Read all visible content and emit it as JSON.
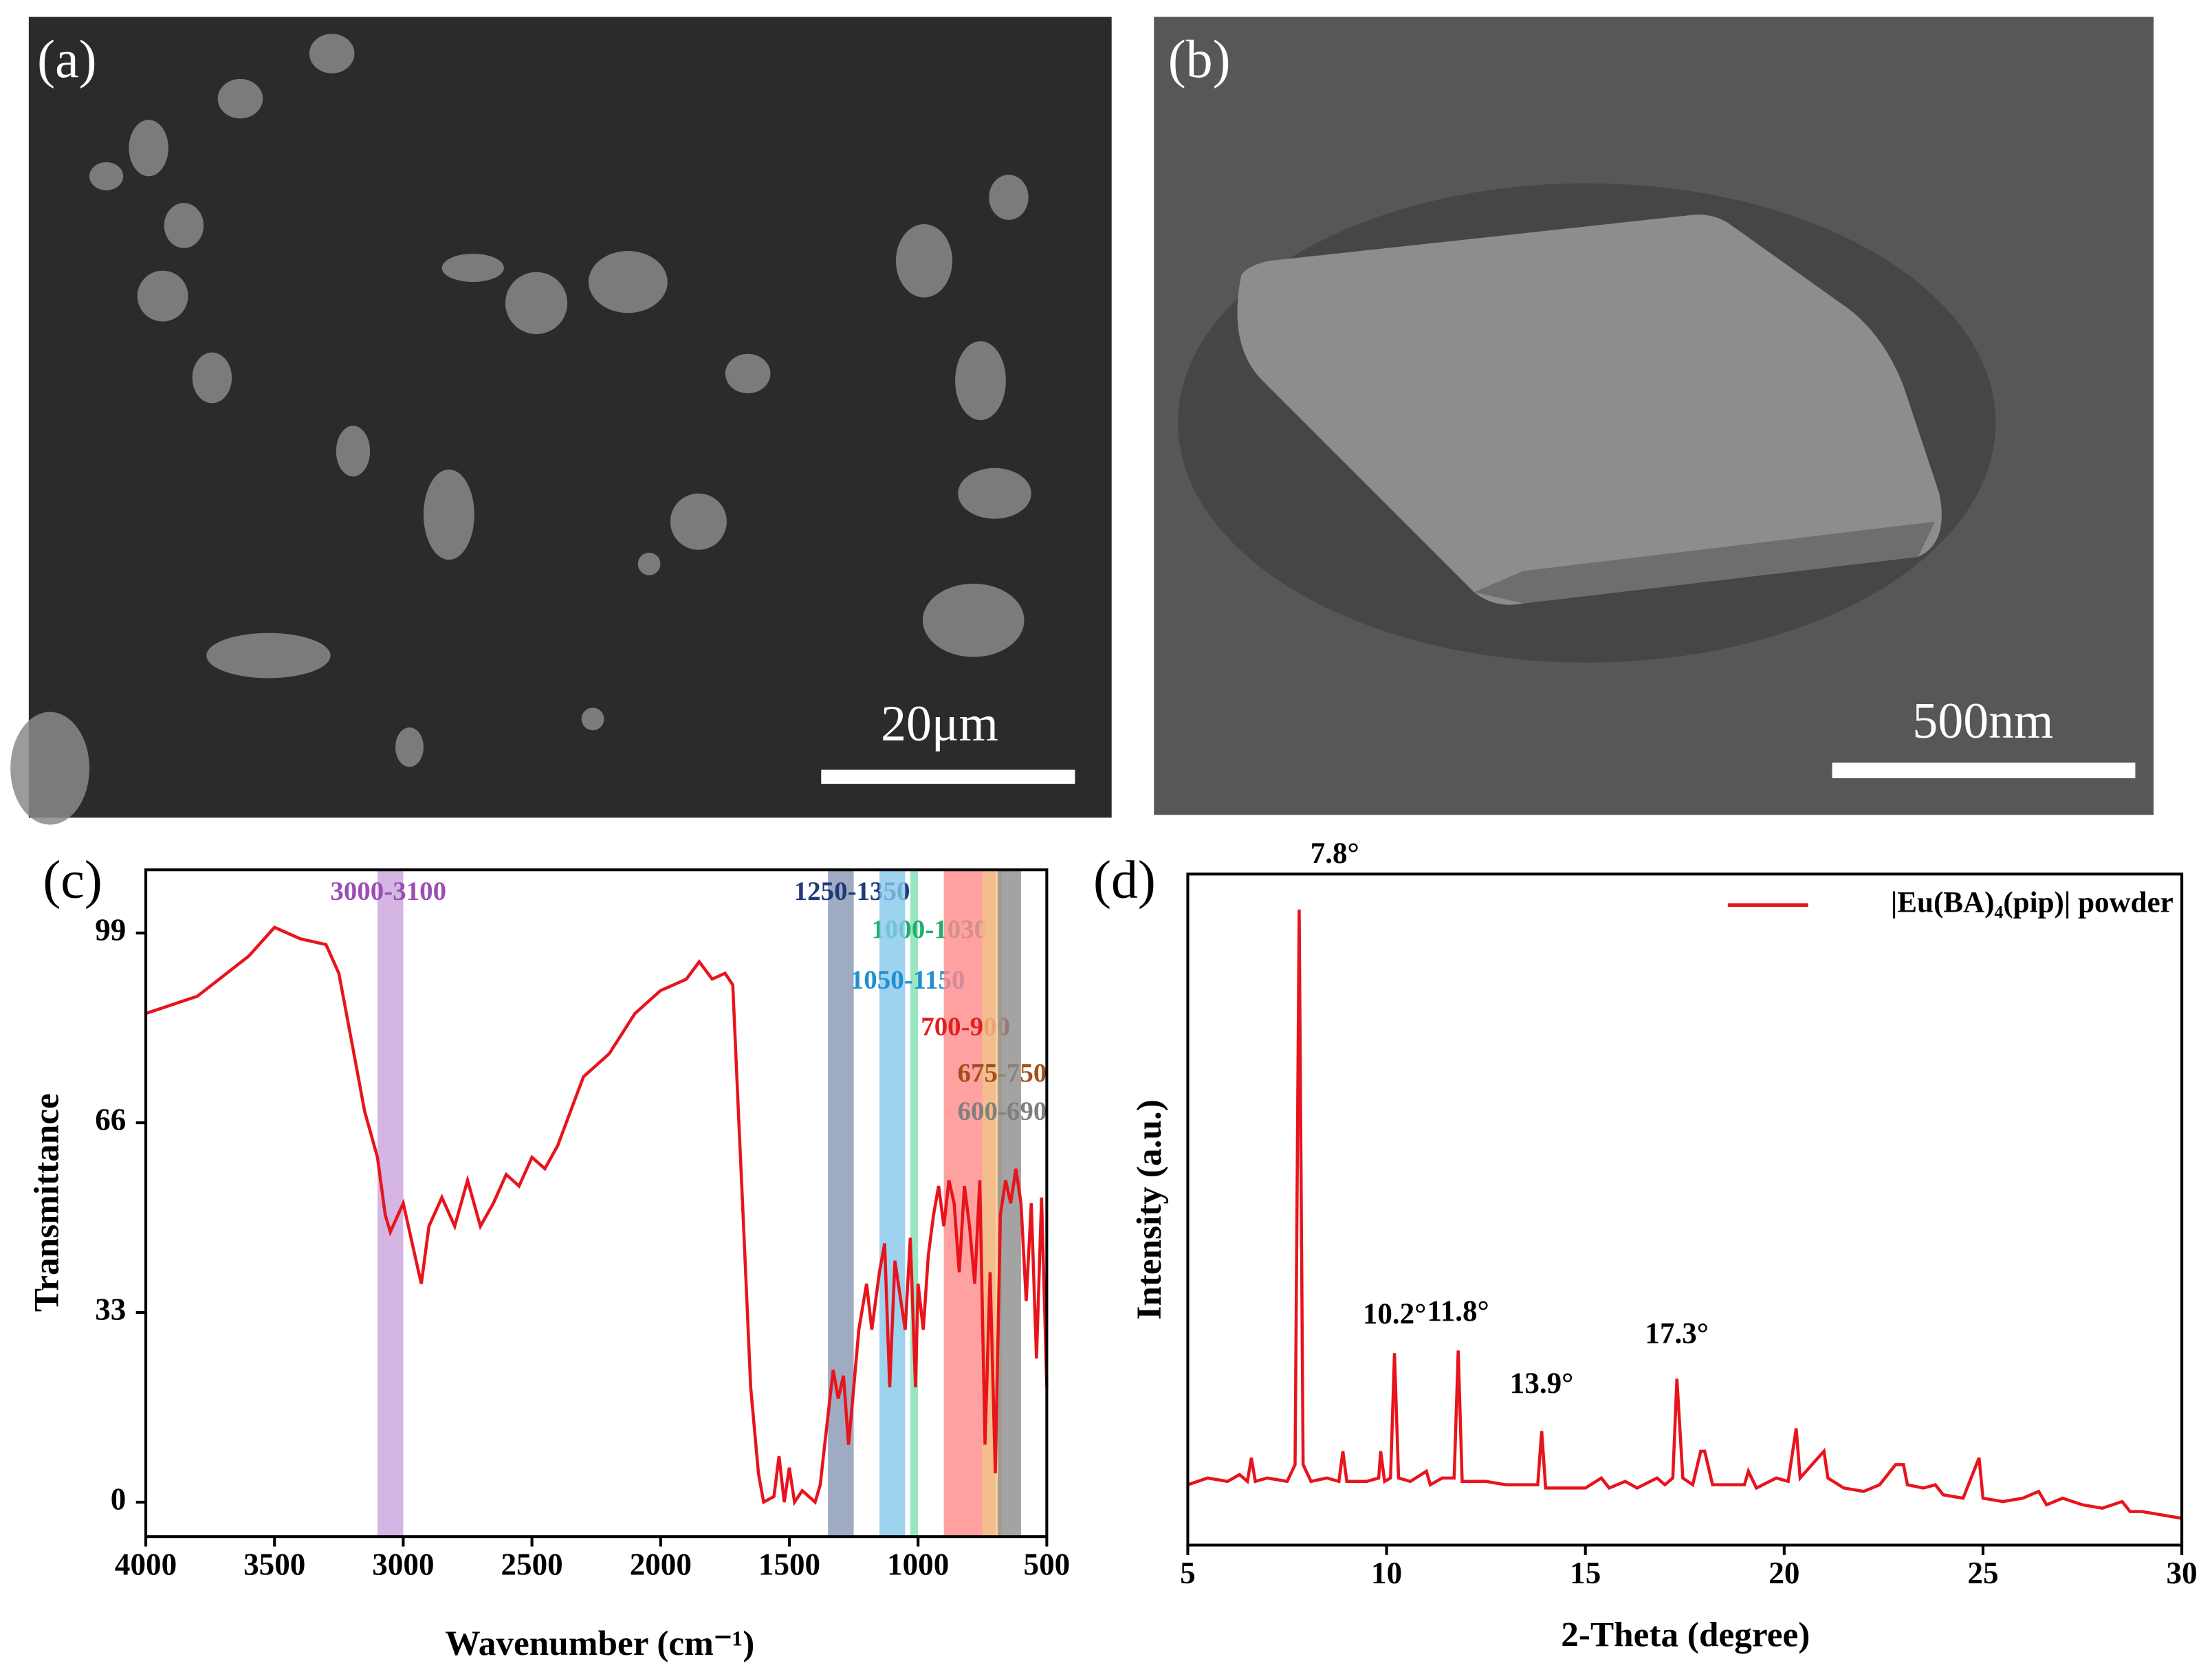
{
  "images": [
    {
      "label": "(a)",
      "scale_bar": "20μm"
    },
    {
      "label": "(b)",
      "scale_bar": "500nm"
    }
  ],
  "chart_data": [
    {
      "type": "line",
      "label": "(c)",
      "xlabel": "Wavenumber (cm⁻¹)",
      "ylabel": "Transmittance",
      "xlim": [
        4000,
        500
      ],
      "ylim": [
        -6,
        110
      ],
      "xticks": [
        4000,
        3500,
        3000,
        2500,
        2000,
        1500,
        1000,
        500
      ],
      "yticks": [
        0,
        33,
        66,
        99
      ],
      "bands": [
        {
          "label": "3000-3100",
          "range": [
            3000,
            3100
          ],
          "color": "#c9a3dc",
          "label_color": "#9b4fb5"
        },
        {
          "label": "1250-1350",
          "range": [
            1250,
            1350
          ],
          "color": "#8796b4",
          "label_color": "#1f3a7a"
        },
        {
          "label": "1000-1030",
          "range": [
            1000,
            1030
          ],
          "color": "#7fe0b4",
          "label_color": "#1fb070"
        },
        {
          "label": "1050-1150",
          "range": [
            1050,
            1150
          ],
          "color": "#86c8ec",
          "label_color": "#1f8fd0"
        },
        {
          "label": "700-900",
          "range": [
            700,
            900
          ],
          "color": "#ff8a8a",
          "label_color": "#e02020"
        },
        {
          "label": "675-750",
          "range": [
            675,
            750
          ],
          "color": "#f0c488",
          "label_color": "#a0501a"
        },
        {
          "label": "600-690",
          "range": [
            600,
            690
          ],
          "color": "#8c8c8c",
          "label_color": "#808080"
        }
      ],
      "x": [
        4000,
        3800,
        3600,
        3500,
        3400,
        3300,
        3250,
        3200,
        3150,
        3100,
        3070,
        3050,
        3000,
        2950,
        2930,
        2900,
        2850,
        2800,
        2750,
        2700,
        2650,
        2600,
        2550,
        2500,
        2450,
        2400,
        2350,
        2300,
        2200,
        2100,
        2000,
        1950,
        1900,
        1850,
        1800,
        1750,
        1720,
        1700,
        1680,
        1650,
        1620,
        1600,
        1560,
        1540,
        1520,
        1500,
        1480,
        1450,
        1400,
        1380,
        1350,
        1330,
        1310,
        1290,
        1270,
        1250,
        1230,
        1200,
        1180,
        1150,
        1130,
        1110,
        1090,
        1070,
        1050,
        1030,
        1010,
        1000,
        980,
        960,
        940,
        920,
        900,
        880,
        860,
        840,
        820,
        800,
        780,
        760,
        740,
        720,
        700,
        680,
        660,
        640,
        620,
        600,
        580,
        560,
        540,
        520,
        500
      ],
      "series": [
        {
          "color": "#e8141c",
          "values": [
            85,
            88,
            95,
            100,
            98,
            97,
            92,
            80,
            68,
            60,
            50,
            47,
            52,
            42,
            38,
            48,
            53,
            48,
            56,
            48,
            52,
            57,
            55,
            60,
            58,
            62,
            68,
            74,
            78,
            85,
            89,
            90,
            91,
            94,
            91,
            92,
            90,
            70,
            50,
            20,
            5,
            0,
            1,
            8,
            0,
            6,
            0,
            2,
            0,
            3,
            15,
            23,
            18,
            22,
            10,
            20,
            30,
            38,
            30,
            40,
            45,
            20,
            42,
            36,
            30,
            46,
            20,
            38,
            30,
            43,
            50,
            55,
            48,
            56,
            52,
            40,
            55,
            48,
            38,
            56,
            10,
            40,
            5,
            50,
            56,
            52,
            58,
            52,
            35,
            52,
            25,
            53,
            20
          ]
        }
      ]
    },
    {
      "type": "line",
      "label": "(d)",
      "xlabel": "2-Theta (degree)",
      "ylabel": "Intensity (a.u.)",
      "xlim": [
        5,
        30
      ],
      "ylim": [
        0,
        100
      ],
      "xticks": [
        5,
        10,
        15,
        20,
        25,
        30
      ],
      "annotations": [
        "7.8°",
        "10.2°",
        "11.8°",
        "13.9°",
        "17.3°"
      ],
      "legend": "upper right",
      "x": [
        5,
        5.5,
        6,
        6.3,
        6.5,
        6.6,
        6.7,
        7,
        7.5,
        7.7,
        7.8,
        7.9,
        8.1,
        8.5,
        8.8,
        8.9,
        9,
        9.5,
        9.8,
        9.85,
        9.95,
        10.1,
        10.2,
        10.3,
        10.6,
        11,
        11.1,
        11.4,
        11.7,
        11.8,
        11.9,
        12.5,
        13,
        13.5,
        13.8,
        13.9,
        14,
        14.5,
        15,
        15.4,
        15.6,
        16,
        16.3,
        16.8,
        17,
        17.2,
        17.3,
        17.45,
        17.7,
        17.9,
        18,
        18.2,
        18.6,
        19,
        19.1,
        19.3,
        19.8,
        20.1,
        20.3,
        20.4,
        20.7,
        21,
        21.1,
        21.5,
        22,
        22.4,
        22.8,
        23,
        23.1,
        23.5,
        23.8,
        24,
        24.5,
        24.9,
        25,
        25.5,
        26,
        26.4,
        26.6,
        27,
        27.5,
        28,
        28.5,
        28.7,
        29,
        29.5,
        30
      ],
      "series": [
        {
          "name": "|Eu(BA)₄(pip)| powder",
          "color": "#e8141c",
          "values": [
            9,
            10,
            9.5,
            10.5,
            9.5,
            13,
            9.5,
            10,
            9.5,
            12,
            94.7,
            12,
            9.5,
            10,
            9.5,
            14,
            9.5,
            9.5,
            10,
            14,
            9.5,
            10,
            28.6,
            10,
            9.5,
            11,
            9,
            10,
            10,
            29,
            9.5,
            9.5,
            9,
            9,
            9,
            17,
            8.5,
            8.5,
            8.5,
            10,
            8.5,
            9.5,
            8.5,
            10,
            9,
            10,
            24.8,
            10,
            9,
            14,
            14,
            9,
            9,
            9,
            11,
            8.5,
            10,
            9.5,
            17.4,
            10,
            12,
            14,
            10,
            8.5,
            8,
            9,
            12,
            12,
            9,
            8.5,
            9,
            7.5,
            7,
            13,
            7,
            6.5,
            7,
            8,
            6,
            7,
            6,
            5.5,
            6.5,
            5,
            5,
            4.5,
            4
          ]
        }
      ]
    }
  ]
}
